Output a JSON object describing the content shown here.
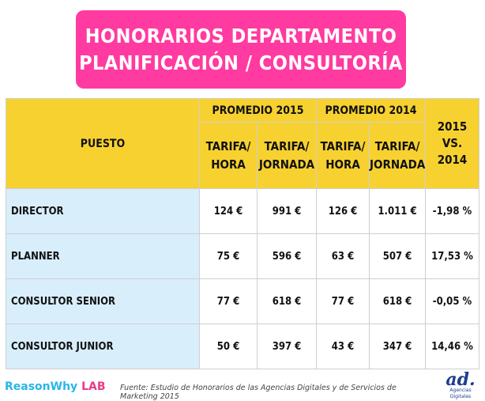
{
  "title": {
    "line1": "HONORARIOS DEPARTAMENTO",
    "line2": "PLANIFICACIÓN / CONSULTORÍA"
  },
  "table": {
    "puesto_header": "PUESTO",
    "avg_2015_header": "PROMEDIO 2015",
    "avg_2014_header": "PROMEDIO 2014",
    "vs_header": [
      "2015",
      "VS.",
      "2014"
    ],
    "sub_headers": {
      "hour": [
        "TARIFA/",
        "HORA"
      ],
      "day": [
        "TARIFA/",
        "JORNADA"
      ]
    },
    "rows": [
      {
        "puesto": "DIRECTOR",
        "h2015": "124 €",
        "d2015": "991 €",
        "h2014": "126 €",
        "d2014": "1.011 €",
        "change": "-1,98 %",
        "trend": "neg"
      },
      {
        "puesto": "PLANNER",
        "h2015": "75 €",
        "d2015": "596 €",
        "h2014": "63 €",
        "d2014": "507 €",
        "change": "17,53 %",
        "trend": "pos"
      },
      {
        "puesto": "CONSULTOR SENIOR",
        "h2015": "77 €",
        "d2015": "618 €",
        "h2014": "77 €",
        "d2014": "618 €",
        "change": "-0,05 %",
        "trend": "neg"
      },
      {
        "puesto": "CONSULTOR JUNIOR",
        "h2015": "50 €",
        "d2015": "397 €",
        "h2014": "43 €",
        "d2014": "347 €",
        "change": "14,46 %",
        "trend": "pos"
      }
    ]
  },
  "footer": {
    "brand_part1": "ReasonWhy",
    "brand_part2": "LAB",
    "source": "Fuente: Estudio de Honorarios de las Agencias Digitales y de Servicios de Marketing 2015",
    "logo_mark": "ad.",
    "logo_sub": "Agencias Digitales"
  },
  "colors": {
    "title_bg": "#ff3aa0",
    "header_bg": "#f7d130",
    "label_bg": "#d8eefb",
    "negative": "#e0302a",
    "positive": "#2e9c2e"
  }
}
